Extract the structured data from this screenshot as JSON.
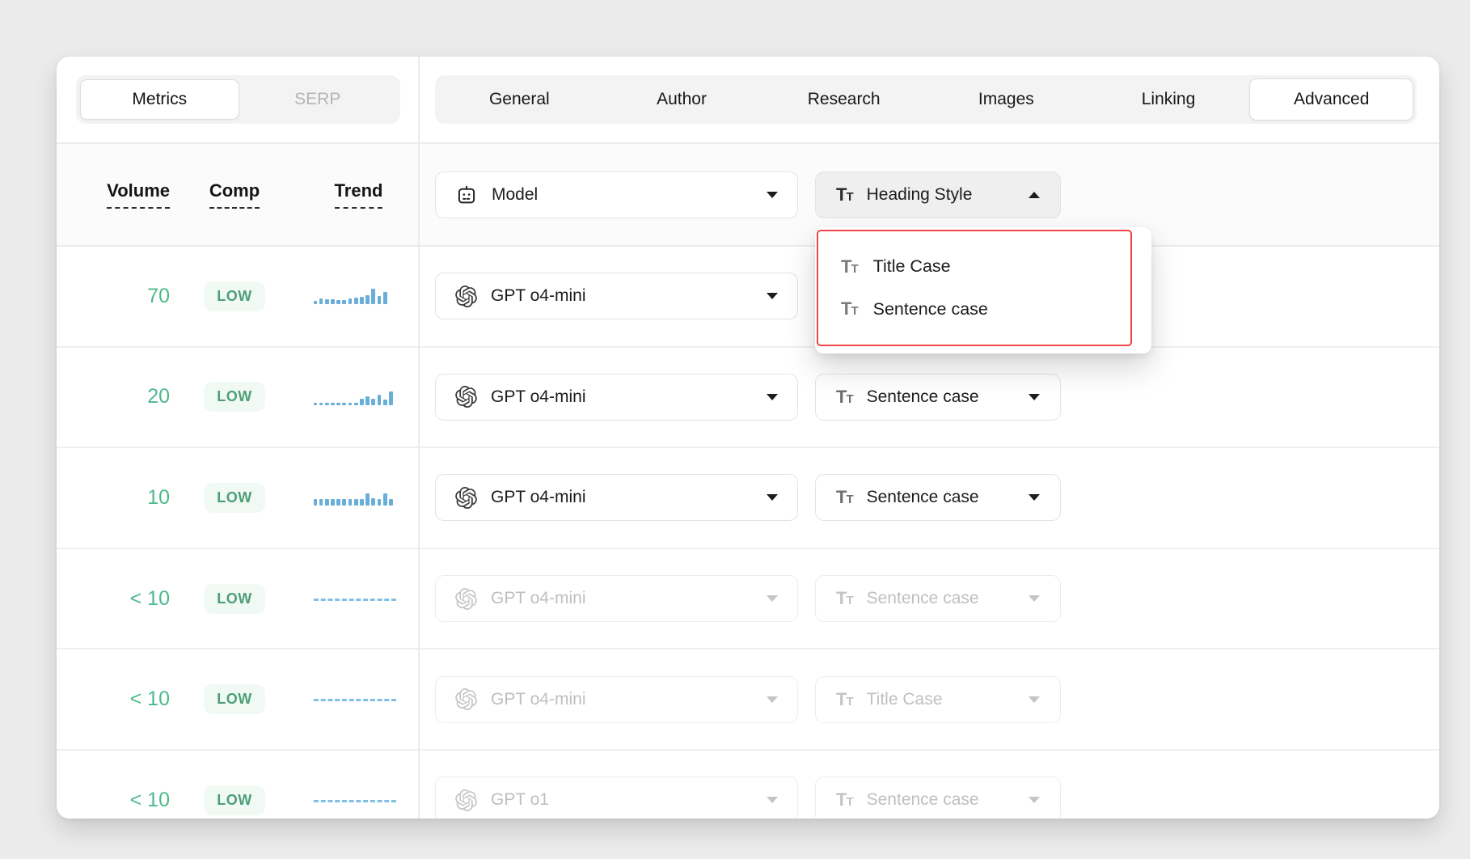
{
  "left_panel": {
    "toggle": {
      "metrics_label": "Metrics",
      "serp_label": "SERP"
    },
    "columns": {
      "volume": "Volume",
      "comp": "Comp",
      "trend": "Trend"
    }
  },
  "tabs": [
    {
      "label": "General",
      "active": false
    },
    {
      "label": "Author",
      "active": false
    },
    {
      "label": "Research",
      "active": false
    },
    {
      "label": "Images",
      "active": false
    },
    {
      "label": "Linking",
      "active": false
    },
    {
      "label": "Advanced",
      "active": true
    }
  ],
  "controls_header": {
    "model_label": "Model",
    "heading_style_label": "Heading Style"
  },
  "heading_style_dropdown": {
    "open": true,
    "highlight_color": "#ee4646",
    "items": [
      {
        "label": "Title Case"
      },
      {
        "label": "Sentence case"
      }
    ]
  },
  "rows": [
    {
      "volume": "70",
      "comp": "LOW",
      "trend_type": "bars",
      "trend": [
        4,
        7,
        6,
        6,
        5,
        5,
        7,
        8,
        9,
        11,
        19,
        10,
        15
      ],
      "model": "GPT o4-mini",
      "heading_style": null,
      "disabled": false
    },
    {
      "volume": "20",
      "comp": "LOW",
      "trend_type": "bars",
      "trend": [
        3,
        3,
        3,
        3,
        3,
        3,
        3,
        3,
        8,
        11,
        8,
        13,
        7,
        17
      ],
      "model": "GPT o4-mini",
      "heading_style": "Sentence case",
      "disabled": false
    },
    {
      "volume": "10",
      "comp": "LOW",
      "trend_type": "bars",
      "trend": [
        8,
        8,
        8,
        8,
        8,
        8,
        8,
        8,
        8,
        15,
        9,
        8,
        15,
        8
      ],
      "model": "GPT o4-mini",
      "heading_style": "Sentence case",
      "disabled": false
    },
    {
      "volume": "< 10",
      "comp": "LOW",
      "trend_type": "flat",
      "trend": [],
      "model": "GPT o4-mini",
      "heading_style": "Sentence case",
      "disabled": true
    },
    {
      "volume": "< 10",
      "comp": "LOW",
      "trend_type": "flat",
      "trend": [],
      "model": "GPT o4-mini",
      "heading_style": "Title Case",
      "disabled": true
    },
    {
      "volume": "< 10",
      "comp": "LOW",
      "trend_type": "flat",
      "trend": [],
      "model": "GPT o1",
      "heading_style": "Sentence case",
      "disabled": true
    }
  ],
  "colors": {
    "accent_green": "#4eb98c",
    "badge_bg": "#f1f9f4",
    "spark_blue": "#68aed8",
    "popup_red": "#ee4646",
    "page_bg": "#ebebeb"
  }
}
